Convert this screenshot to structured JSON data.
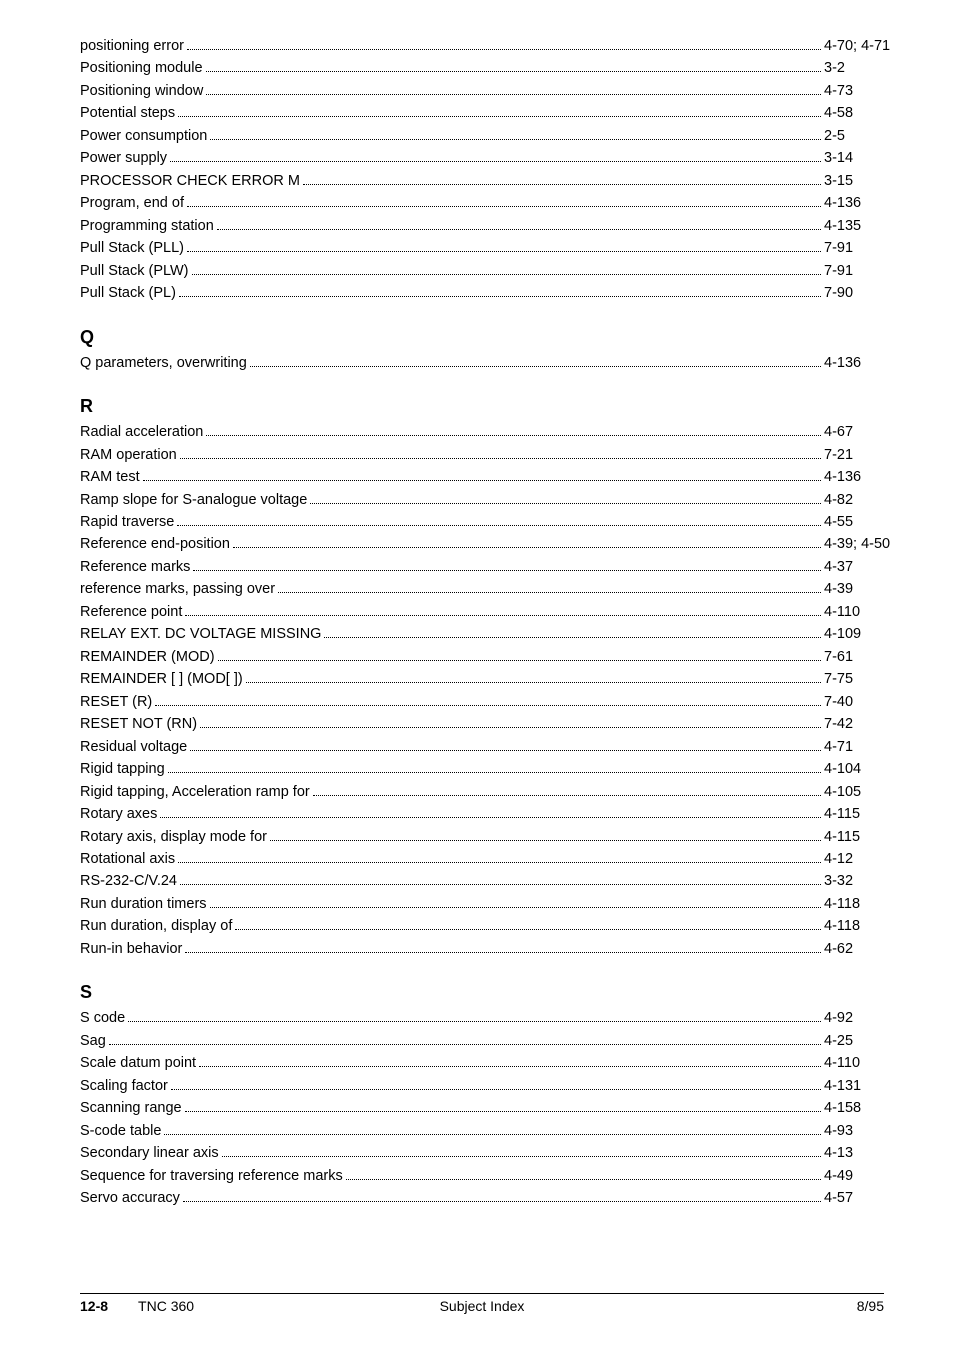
{
  "sections": {
    "p_cont": {
      "entries": [
        {
          "label": "positioning error",
          "page": "4-70; 4-71"
        },
        {
          "label": "Positioning module",
          "page": "3-2"
        },
        {
          "label": "Positioning window",
          "page": "4-73"
        },
        {
          "label": "Potential steps",
          "page": "4-58"
        },
        {
          "label": "Power consumption",
          "page": "2-5"
        },
        {
          "label": "Power supply",
          "page": "3-14"
        },
        {
          "label": "PROCESSOR CHECK ERROR M",
          "page": "3-15"
        },
        {
          "label": "Program, end of",
          "page": "4-136"
        },
        {
          "label": "Programming station",
          "page": "4-135"
        },
        {
          "label": "Pull Stack   (PLL)",
          "page": "7-91"
        },
        {
          "label": "Pull Stack   (PLW)",
          "page": "7-91"
        },
        {
          "label": "Pull Stack (PL)",
          "page": "7-90"
        }
      ]
    },
    "q": {
      "heading": "Q",
      "entries": [
        {
          "label": "Q parameters, overwriting",
          "page": "4-136"
        }
      ]
    },
    "r": {
      "heading": "R",
      "entries": [
        {
          "label": "Radial acceleration",
          "page": "4-67"
        },
        {
          "label": "RAM operation",
          "page": "7-21"
        },
        {
          "label": "RAM test",
          "page": "4-136"
        },
        {
          "label": "Ramp slope for S-analogue voltage",
          "page": "4-82"
        },
        {
          "label": "Rapid traverse",
          "page": "4-55"
        },
        {
          "label": "Reference end-position",
          "page": "4-39; 4-50"
        },
        {
          "label": "Reference marks",
          "page": "4-37"
        },
        {
          "label": "reference marks, passing over",
          "page": "4-39"
        },
        {
          "label": "Reference point",
          "page": "4-110"
        },
        {
          "label": "RELAY EXT. DC VOLTAGE MISSING",
          "page": "4-109"
        },
        {
          "label": "REMAINDER   (MOD)",
          "page": "7-61"
        },
        {
          "label": "REMAINDER [ ]   (MOD[ ])",
          "page": "7-75"
        },
        {
          "label": "RESET   (R)",
          "page": "7-40"
        },
        {
          "label": "RESET NOT   (RN)",
          "page": "7-42"
        },
        {
          "label": "Residual voltage",
          "page": "4-71"
        },
        {
          "label": "Rigid tapping",
          "page": "4-104"
        },
        {
          "label": "Rigid tapping, Acceleration ramp for",
          "page": "4-105"
        },
        {
          "label": "Rotary axes",
          "page": "4-115"
        },
        {
          "label": "Rotary axis, display mode for",
          "page": "4-115"
        },
        {
          "label": "Rotational axis",
          "page": "4-12"
        },
        {
          "label": "RS-232-C/V.24",
          "page": "3-32"
        },
        {
          "label": "Run duration timers",
          "page": "4-118"
        },
        {
          "label": "Run duration, display of",
          "page": "4-118"
        },
        {
          "label": "Run-in behavior",
          "page": "4-62"
        }
      ]
    },
    "s": {
      "heading": "S",
      "entries": [
        {
          "label": "S code",
          "page": "4-92"
        },
        {
          "label": "Sag",
          "page": "4-25"
        },
        {
          "label": "Scale datum point",
          "page": "4-110"
        },
        {
          "label": "Scaling factor",
          "page": "4-131"
        },
        {
          "label": "Scanning range",
          "page": "4-158"
        },
        {
          "label": "S-code table",
          "page": "4-93"
        },
        {
          "label": "Secondary linear axis",
          "page": "4-13"
        },
        {
          "label": "Sequence for traversing reference marks",
          "page": "4-49"
        },
        {
          "label": "Servo accuracy",
          "page": "4-57"
        }
      ]
    }
  },
  "footer": {
    "page_num": "12-8",
    "doc": "TNC 360",
    "title": "Subject Index",
    "date": "8/95"
  }
}
